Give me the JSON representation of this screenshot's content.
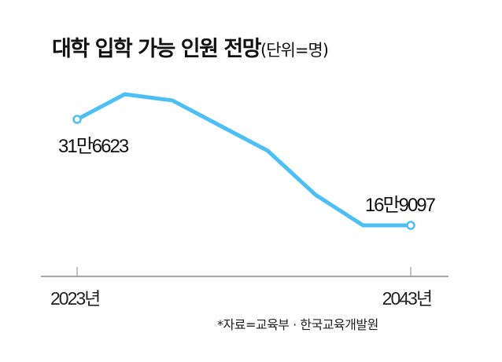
{
  "chart_data": {
    "type": "line",
    "title": "대학 입학 가능 인원 전망",
    "unit_label": "(단위=명)",
    "x": [
      0,
      1,
      2,
      3,
      4,
      5,
      6,
      7
    ],
    "values": [
      316623,
      351600,
      342900,
      307900,
      272900,
      211700,
      169097,
      169097
    ],
    "series_name": "대학 입학 가능 인원",
    "ylim": [
      120000,
      370000
    ],
    "xtick_labels": [
      {
        "index": 0,
        "label": "2023년"
      },
      {
        "index": 7,
        "label": "2043년"
      }
    ],
    "annotations": [
      {
        "index": 0,
        "text": "31만6623",
        "position": "below"
      },
      {
        "index": 7,
        "text": "16만9097",
        "position": "above"
      }
    ],
    "grid": false,
    "line_color": "#4cc0f5",
    "source": "*자료=교육부 · 한국교육개발원"
  }
}
